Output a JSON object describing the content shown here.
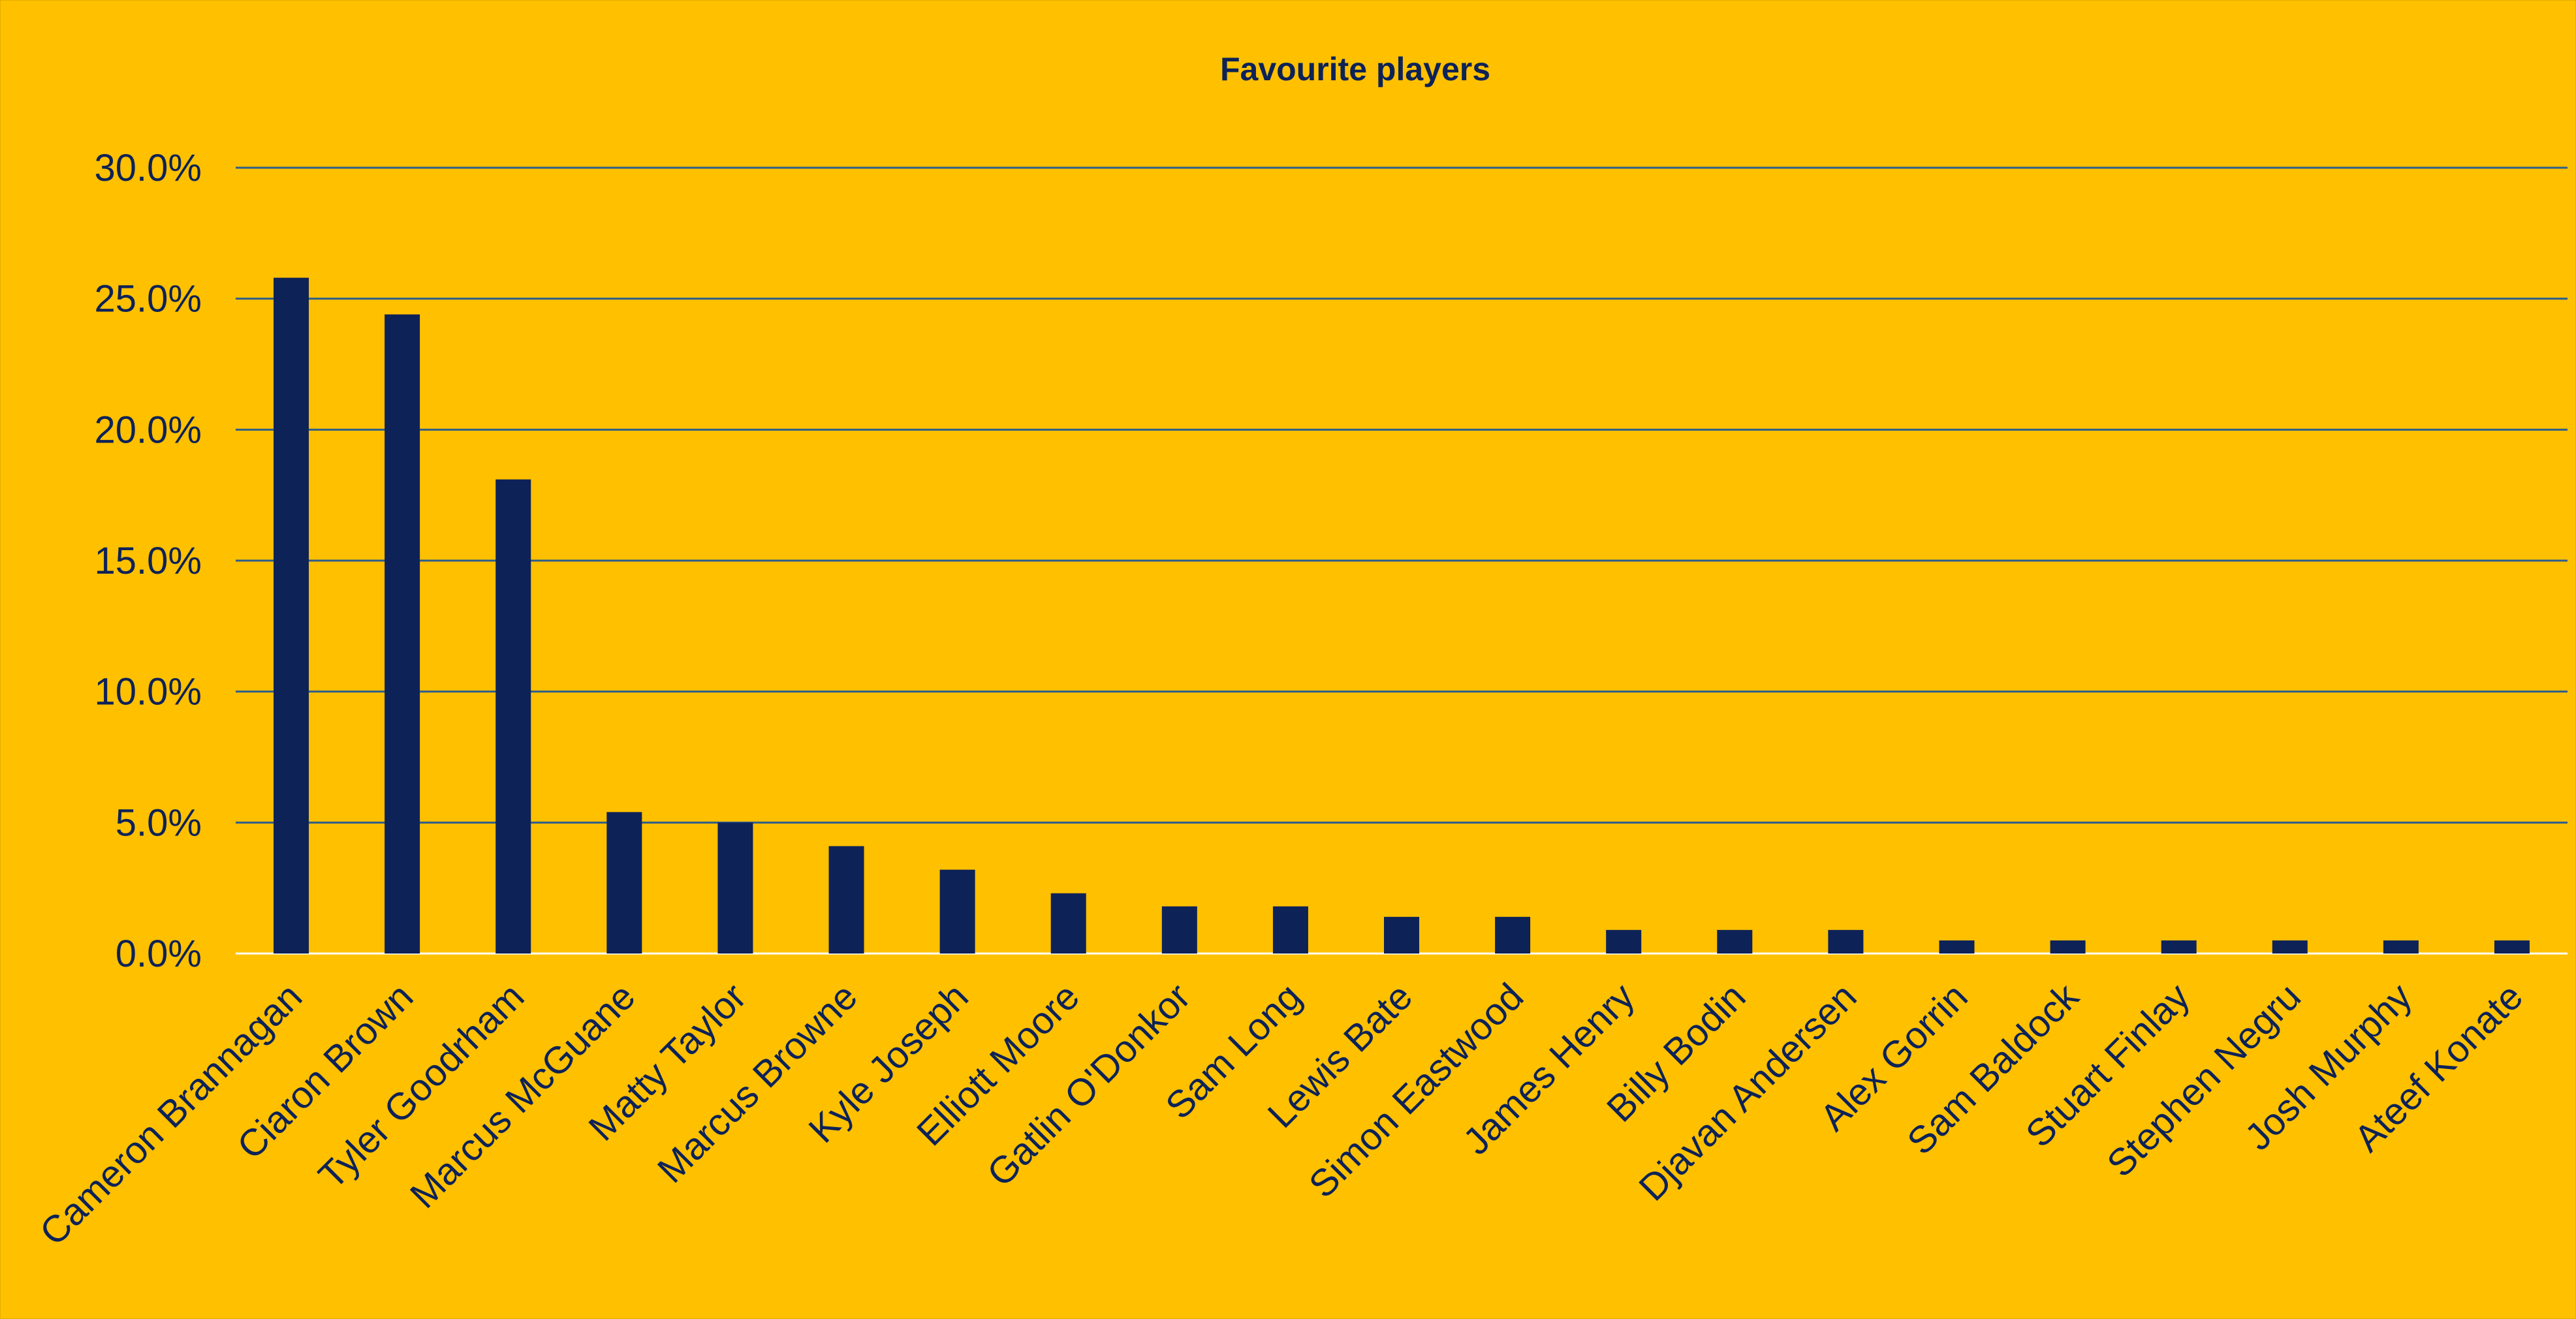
{
  "chart_data": {
    "type": "bar",
    "title": "Favourite players",
    "xlabel": "",
    "ylabel": "",
    "ylim": [
      0,
      30
    ],
    "yticks": [
      "0.0%",
      "5.0%",
      "10.0%",
      "15.0%",
      "20.0%",
      "25.0%",
      "30.0%"
    ],
    "ytick_values": [
      0,
      5,
      10,
      15,
      20,
      25,
      30
    ],
    "grid": true,
    "legend": "none",
    "bar_color": "#0D2257",
    "background_color": "#FFC000",
    "categories": [
      "Cameron Brannagan",
      "Ciaron Brown",
      "Tyler Goodrham",
      "Marcus McGuane",
      "Matty Taylor",
      "Marcus Browne",
      "Kyle Joseph",
      "Elliott Moore",
      "Gatlin O'Donkor",
      "Sam Long",
      "Lewis Bate",
      "Simon Eastwood",
      "James Henry",
      "Billy Bodin",
      "Djavan Andersen",
      "Alex Gorrin",
      "Sam Baldock",
      "Stuart Finlay",
      "Stephen Negru",
      "Josh Murphy",
      "Ateef Konate"
    ],
    "values": [
      25.8,
      24.4,
      18.1,
      5.4,
      5.0,
      4.1,
      3.2,
      2.3,
      1.8,
      1.8,
      1.4,
      1.4,
      0.9,
      0.9,
      0.9,
      0.5,
      0.5,
      0.5,
      0.5,
      0.5,
      0.5
    ]
  }
}
